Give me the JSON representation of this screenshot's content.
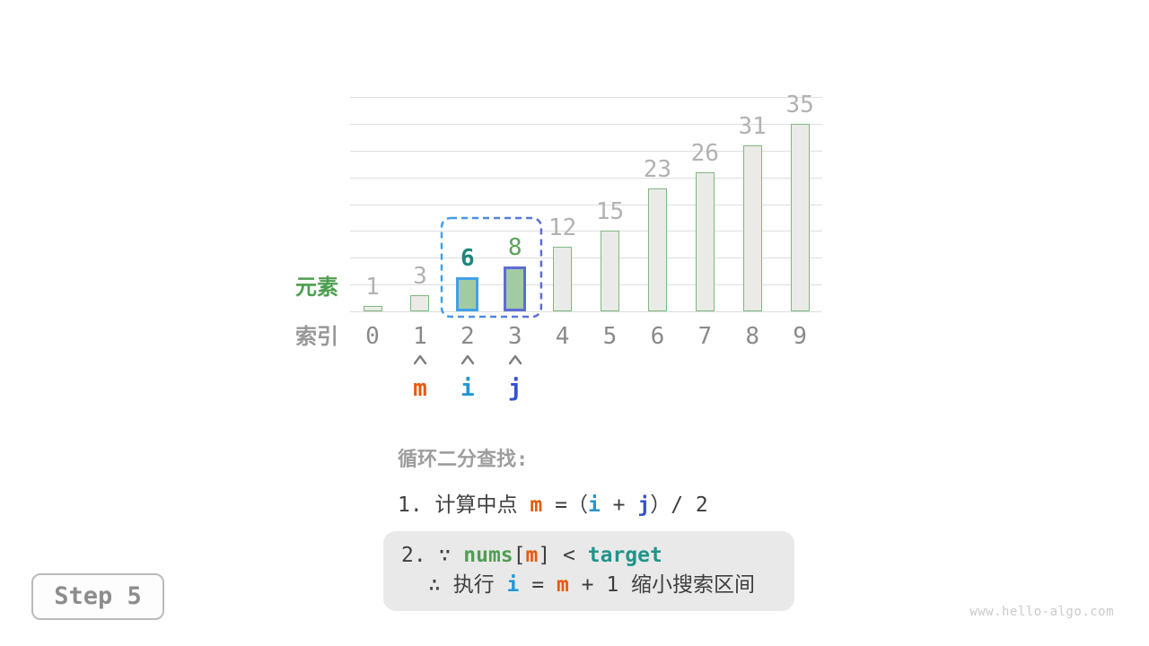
{
  "chart_data": {
    "type": "bar",
    "categories": [
      "0",
      "1",
      "2",
      "3",
      "4",
      "5",
      "6",
      "7",
      "8",
      "9"
    ],
    "values": [
      1,
      3,
      6,
      8,
      12,
      15,
      23,
      26,
      31,
      35
    ],
    "title": "",
    "xlabel": "索引",
    "ylabel": "元素",
    "ylim": [
      0,
      40
    ],
    "gridline_step": 5,
    "grid": true,
    "legend_position": "none",
    "value_label_color": "#b2b2b2",
    "bar_style": {
      "fill": "#eaebe8",
      "border": "#7eb97e"
    },
    "highlights": [
      {
        "index": 2,
        "fill": "#a3cba3",
        "border": "#42a0e8",
        "label_color": "#1f857a",
        "label_bold": true
      },
      {
        "index": 3,
        "fill": "#a3cba3",
        "border": "#5e6cd8",
        "label_color": "#57a457",
        "label_bold": false
      }
    ],
    "selection_box": {
      "from_index": 2,
      "to_index": 3,
      "color_left": "#42a0e8",
      "color_right": "#5e6cd8"
    },
    "pointers": [
      {
        "label": "m",
        "index": 1,
        "color": "#e8590c"
      },
      {
        "label": "i",
        "index": 2,
        "color": "#2196d8"
      },
      {
        "label": "j",
        "index": 3,
        "color": "#3350d2"
      }
    ],
    "arrow_color": "#7d7d7d",
    "axis_label_colors": {
      "ylabel": "#4d9e50",
      "xlabel": "#989898"
    }
  },
  "description": {
    "title": "循环二分查找:",
    "line1": [
      {
        "t": "1. 计算中点 ",
        "c": "#3f3f3f"
      },
      {
        "t": "m",
        "c": "#e8590c",
        "b": true
      },
      {
        "t": " =（",
        "c": "#3f3f3f"
      },
      {
        "t": "i",
        "c": "#2196d8",
        "b": true
      },
      {
        "t": " + ",
        "c": "#3f3f3f"
      },
      {
        "t": "j",
        "c": "#3350d2",
        "b": true
      },
      {
        "t": "）/ 2",
        "c": "#3f3f3f"
      }
    ],
    "box_line1": [
      {
        "t": "2. ∵ ",
        "c": "#3f3f3f"
      },
      {
        "t": "nums",
        "c": "#4f9e52",
        "b": true
      },
      {
        "t": "[",
        "c": "#3f3f3f"
      },
      {
        "t": "m",
        "c": "#e8590c",
        "b": true
      },
      {
        "t": "] < ",
        "c": "#3f3f3f"
      },
      {
        "t": "target",
        "c": "#22948a",
        "b": true
      }
    ],
    "box_line2": [
      {
        "t": "∴ 执行 ",
        "c": "#3f3f3f"
      },
      {
        "t": "i",
        "c": "#2196d8",
        "b": true
      },
      {
        "t": " = ",
        "c": "#3f3f3f"
      },
      {
        "t": "m",
        "c": "#e8590c",
        "b": true
      },
      {
        "t": " + 1 缩小搜索区间",
        "c": "#3f3f3f"
      }
    ]
  },
  "step_label": "Step 5",
  "watermark": "www.hello-algo.com"
}
